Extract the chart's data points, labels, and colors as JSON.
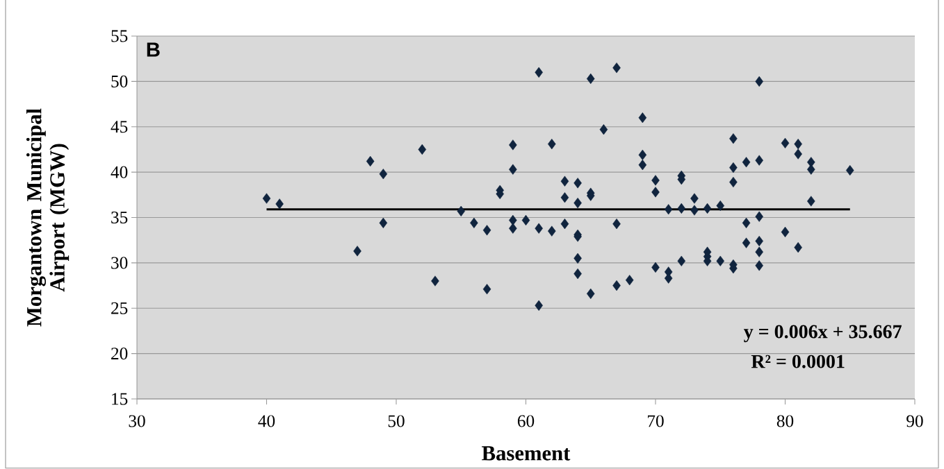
{
  "chart_data": {
    "type": "scatter",
    "xlabel": "Basement",
    "ylabel": "Morgantown Municipal Airport (MGW)",
    "annotations": [
      "B",
      "y = 0.006x + 35.667",
      "R² = 0.0001"
    ],
    "xlim": [
      30,
      90
    ],
    "xticks": [
      30,
      40,
      50,
      60,
      70,
      80,
      90
    ],
    "ylim": [
      15,
      55
    ],
    "yticks": [
      15,
      20,
      25,
      30,
      35,
      40,
      45,
      50,
      55
    ],
    "grid": "y",
    "series": [
      {
        "marker": "diamond",
        "color": "#10243e",
        "x": [
          40,
          41,
          47,
          48,
          49,
          49,
          52,
          53,
          55,
          56,
          57,
          57,
          58,
          58,
          59,
          59,
          59,
          59,
          60,
          61,
          61,
          61,
          62,
          62,
          63,
          63,
          63,
          64,
          64,
          64,
          64,
          64,
          64,
          65,
          65,
          65,
          65,
          66,
          67,
          67,
          67,
          68,
          69,
          69,
          69,
          70,
          70,
          70,
          71,
          71,
          71,
          72,
          72,
          72,
          72,
          73,
          73,
          74,
          74,
          74,
          74,
          75,
          75,
          76,
          76,
          76,
          76,
          76,
          77,
          77,
          77,
          78,
          78,
          78,
          78,
          78,
          78,
          80,
          80,
          81,
          81,
          81,
          82,
          82,
          82,
          85
        ],
        "values": [
          37.1,
          36.5,
          31.3,
          41.2,
          39.8,
          34.4,
          42.5,
          28.0,
          35.7,
          34.4,
          33.6,
          27.1,
          38.0,
          37.6,
          43.0,
          40.3,
          34.7,
          33.8,
          34.7,
          51.0,
          33.8,
          25.3,
          43.1,
          33.5,
          39.0,
          37.2,
          34.3,
          38.8,
          36.6,
          33.1,
          32.9,
          30.5,
          28.8,
          50.3,
          37.7,
          37.4,
          26.6,
          44.7,
          51.5,
          34.3,
          27.5,
          28.1,
          46.0,
          41.9,
          40.8,
          39.1,
          37.8,
          29.5,
          35.9,
          29.0,
          28.3,
          39.6,
          39.2,
          36.0,
          30.2,
          37.1,
          35.8,
          36.0,
          31.2,
          30.7,
          30.2,
          36.3,
          30.2,
          43.7,
          40.5,
          38.9,
          29.8,
          29.4,
          41.1,
          34.4,
          32.2,
          50.0,
          41.3,
          35.1,
          32.4,
          31.2,
          29.7,
          43.2,
          33.4,
          43.1,
          42.0,
          31.7,
          41.1,
          40.3,
          36.8,
          40.2
        ]
      },
      {
        "type": "line",
        "color": "#000000",
        "x": [
          40,
          85
        ],
        "values": [
          35.9,
          35.9
        ]
      }
    ]
  }
}
